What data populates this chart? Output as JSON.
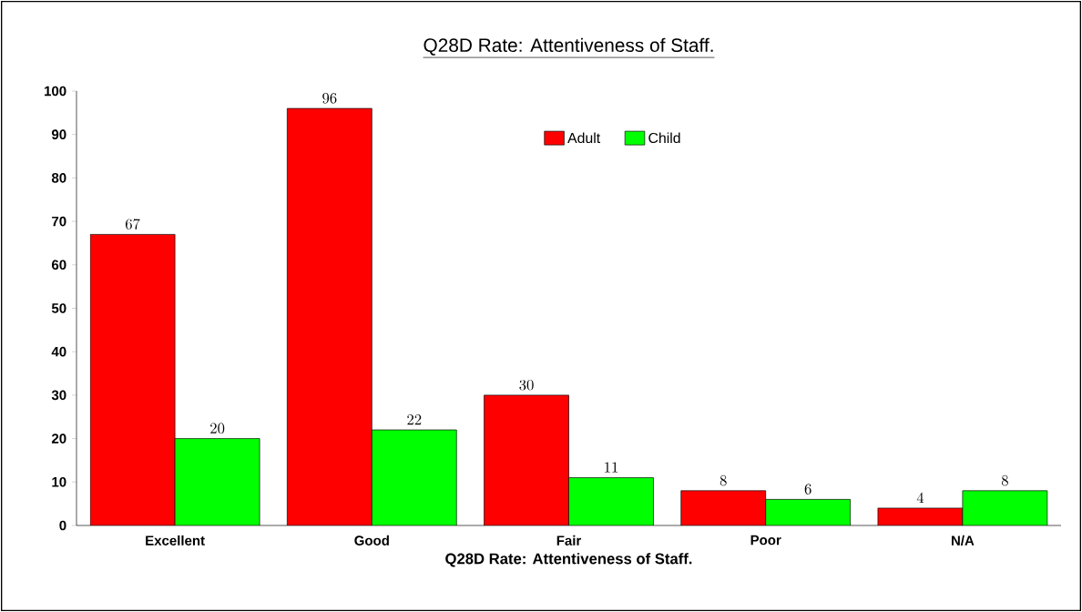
{
  "chart_data": {
    "type": "bar",
    "title": "Q28D Rate: Attentiveness of Staff.",
    "xlabel": "Q28D Rate: Attentiveness of Staff.",
    "categories": [
      "Excellent",
      "Good",
      "Fair",
      "Poor",
      "N/A"
    ],
    "series": [
      {
        "name": "Adult",
        "color": "#ff0000",
        "values": [
          67,
          96,
          30,
          8,
          4
        ]
      },
      {
        "name": "Child",
        "color": "#00ff00",
        "values": [
          20,
          22,
          11,
          6,
          8
        ]
      }
    ],
    "ylim": [
      0,
      100
    ],
    "yticks": [
      0,
      10,
      20,
      30,
      40,
      50,
      60,
      70,
      80,
      90,
      100
    ],
    "data_labels": true,
    "legend": "top",
    "grid": false
  }
}
